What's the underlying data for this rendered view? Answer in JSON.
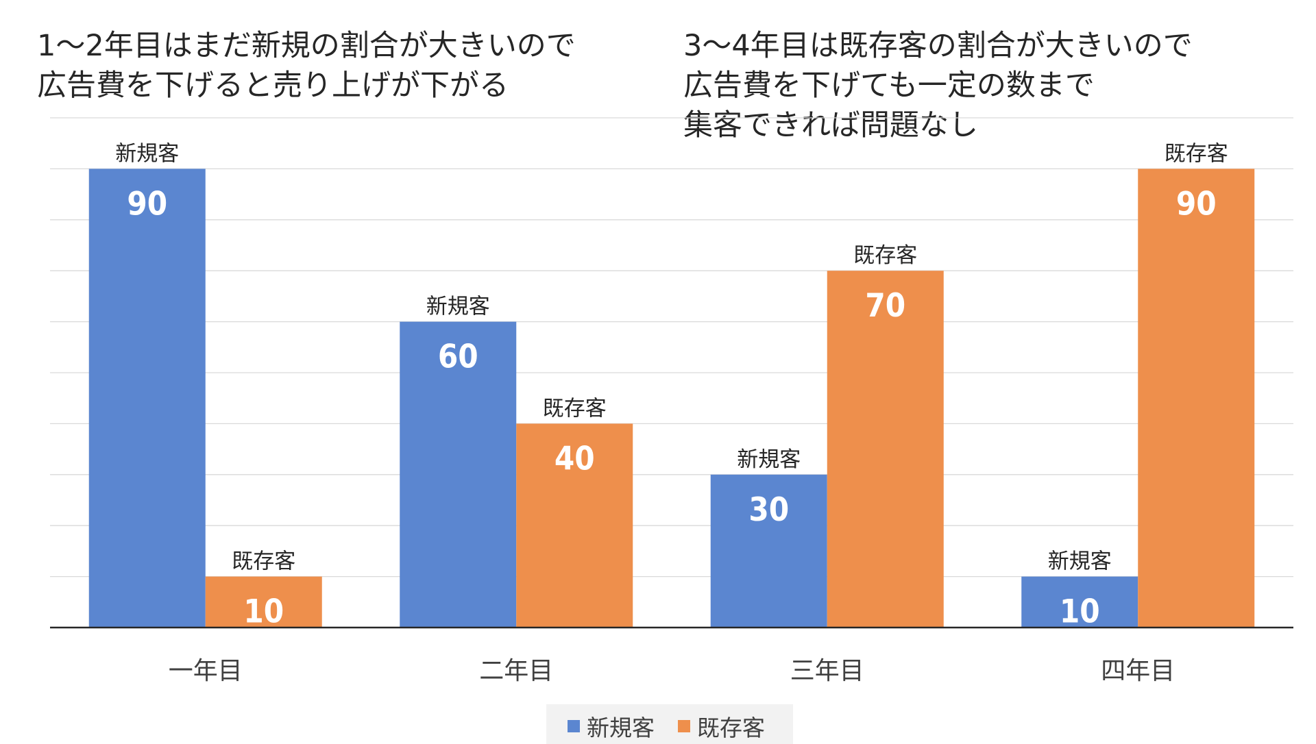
{
  "annotations": {
    "left": "1〜2年目はまだ新規の割合が大きいので\n広告費を下げると売り上げが下がる",
    "right": "3〜4年目は既存客の割合が大きいので\n広告費を下げても一定の数まで\n集客できれば問題なし"
  },
  "chart_data": {
    "type": "bar",
    "categories": [
      "一年目",
      "二年目",
      "三年目",
      "四年目"
    ],
    "series": [
      {
        "name": "新規客",
        "values": [
          90,
          60,
          30,
          10
        ],
        "color": "#5b86d0"
      },
      {
        "name": "既存客",
        "values": [
          10,
          40,
          70,
          90
        ],
        "color": "#ee8f4c"
      }
    ],
    "ylim": [
      0,
      100
    ],
    "grid": true,
    "legend": "bottom-center",
    "data_label_color": "#ffffff"
  }
}
